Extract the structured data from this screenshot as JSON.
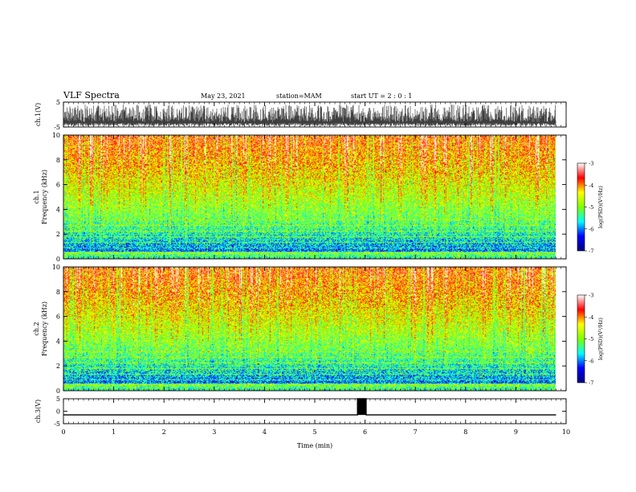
{
  "header": {
    "title": "VLF Spectra",
    "date": "May 23, 2021",
    "station": "station=MAM",
    "start": "start  UT =   2  :  0   :  1"
  },
  "colors": {
    "background": "#ffffff",
    "axes": "#000000",
    "colormap": [
      "#00007f",
      "#0000ff",
      "#00ffff",
      "#7fff00",
      "#ffff00",
      "#ff0000",
      "#ffffff"
    ]
  },
  "chart_data": [
    {
      "type": "line",
      "name": "ch1-waveform",
      "ylabel": "ch.1(V)",
      "ylim": [
        -5,
        5
      ],
      "yticks": [
        "5",
        "-5"
      ],
      "xlim": [
        0,
        10
      ],
      "signal": "dense noise, about 0 to -4.5 V"
    },
    {
      "type": "heatmap",
      "name": "ch1-spectrogram",
      "ylabel": "ch.1 Frequency (kHz)",
      "ylim": [
        0,
        10
      ],
      "yticks": [
        "0",
        "2",
        "4",
        "6",
        "8",
        "10"
      ],
      "xlim": [
        0,
        10
      ],
      "data_xmax": 9.8,
      "colorbar": {
        "label": "log(PSD)(V²/Hz)",
        "range": [
          -7,
          -3
        ],
        "ticks": [
          "-3",
          "-4",
          "-5",
          "-6",
          "-7"
        ]
      }
    },
    {
      "type": "heatmap",
      "name": "ch2-spectrogram",
      "ylabel": "ch.2 Frequency (kHz)",
      "ylim": [
        0,
        10
      ],
      "yticks": [
        "0",
        "2",
        "4",
        "6",
        "8",
        "10"
      ],
      "xlim": [
        0,
        10
      ],
      "data_xmax": 9.8,
      "colorbar": {
        "label": "log(PSD)(V²/Hz)",
        "range": [
          -7,
          -3
        ],
        "ticks": [
          "-3",
          "-4",
          "-5",
          "-6",
          "-7"
        ]
      }
    },
    {
      "type": "line",
      "name": "ch3-waveform",
      "ylabel": "ch.3(V)",
      "ylim": [
        -5,
        5
      ],
      "yticks": [
        "5",
        "0",
        "-5"
      ],
      "xlim": [
        0,
        10
      ],
      "xlabel": "Time  (min)",
      "xticks": [
        "0",
        "1",
        "2",
        "3",
        "4",
        "5",
        "6",
        "7",
        "8",
        "9",
        "10"
      ],
      "x": [
        0,
        5.85,
        5.85,
        6.02,
        6.02,
        9.8
      ],
      "y": [
        -1.5,
        -1.5,
        5,
        5,
        -1.5,
        -1.5
      ]
    }
  ]
}
